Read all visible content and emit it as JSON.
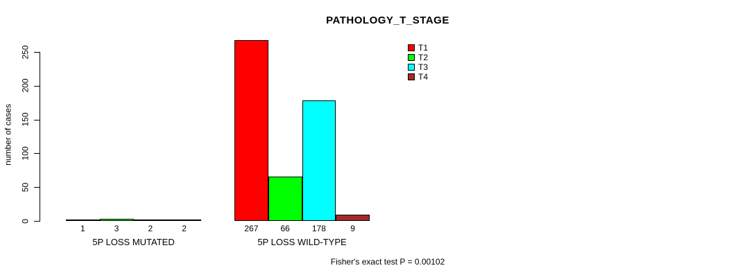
{
  "title": "PATHOLOGY_T_STAGE",
  "footer": "Fisher's exact test P = 0.00102",
  "chart_data": {
    "type": "bar",
    "title": "PATHOLOGY_T_STAGE",
    "xlabel": "",
    "ylabel": "number of cases",
    "categories": [
      "5P LOSS MUTATED",
      "5P LOSS WILD-TYPE"
    ],
    "series": [
      {
        "name": "T1",
        "color": "#FF0000",
        "values": [
          1,
          267
        ]
      },
      {
        "name": "T2",
        "color": "#00FF00",
        "values": [
          3,
          66
        ]
      },
      {
        "name": "T3",
        "color": "#00FFFF",
        "values": [
          2,
          178
        ]
      },
      {
        "name": "T4",
        "color": "#A52A2A",
        "values": [
          2,
          9
        ]
      }
    ],
    "bar_value_labels": [
      [
        "1",
        "3",
        "2",
        "2"
      ],
      [
        "267",
        "66",
        "178",
        "9"
      ]
    ],
    "yticks": [
      0,
      50,
      100,
      150,
      200,
      250
    ],
    "ylim": [
      0,
      267
    ],
    "grid": false,
    "legend_position": "top-right",
    "legend_entries": [
      "T1",
      "T2",
      "T3",
      "T4"
    ],
    "annotation": "Fisher's exact test P = 0.00102",
    "axis_color": "#000000",
    "background_color": "#FFFFFF"
  }
}
